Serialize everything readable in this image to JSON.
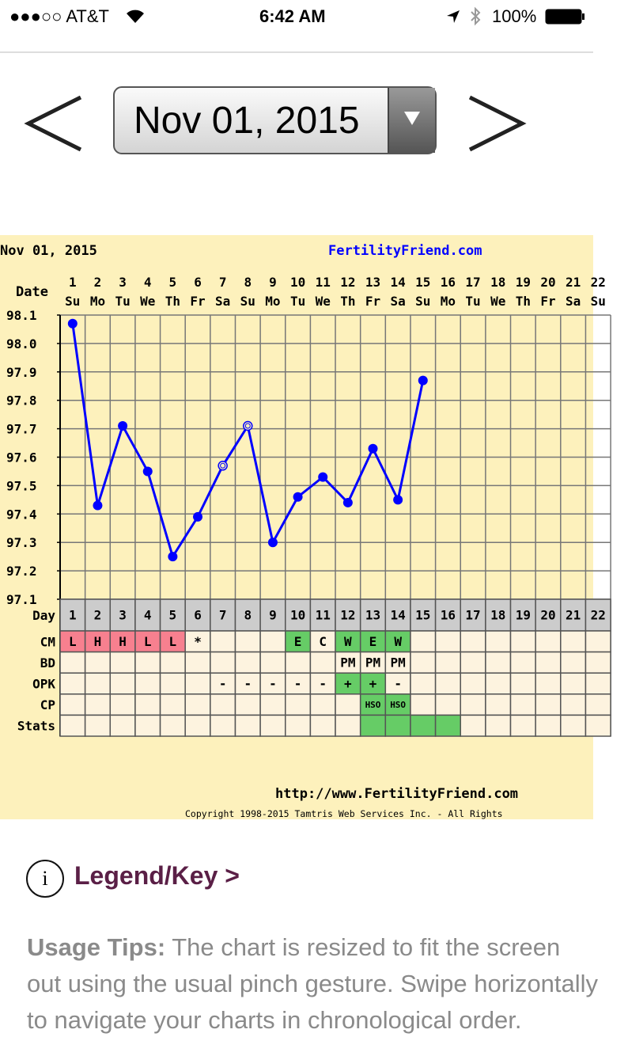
{
  "status_bar": {
    "carrier": "●●●○○ AT&T",
    "time": "6:42 AM",
    "battery": "100%"
  },
  "nav": {
    "date": "Nov 01, 2015",
    "prev_icon": "chevron-left-icon",
    "next_icon": "chevron-right-icon",
    "dropdown_icon": "triangle-down-icon"
  },
  "chart_data": {
    "type": "line",
    "title": "Nov 01, 2015",
    "site": "FertilityFriend.com",
    "url": "http://www.FertilityFriend.com",
    "copyright": "Copyright 1998-2015 Tamtris Web Services Inc. - All Rights",
    "date_label": "Date",
    "days": [
      1,
      2,
      3,
      4,
      5,
      6,
      7,
      8,
      9,
      10,
      11,
      12,
      13,
      14,
      15,
      16,
      17,
      18,
      19,
      20,
      21,
      22
    ],
    "weekdays": [
      "Su",
      "Mo",
      "Tu",
      "We",
      "Th",
      "Fr",
      "Sa",
      "Su",
      "Mo",
      "Tu",
      "We",
      "Th",
      "Fr",
      "Sa",
      "Su",
      "Mo",
      "Tu",
      "We",
      "Th",
      "Fr",
      "Sa",
      "Su"
    ],
    "ylim": [
      97.1,
      98.1
    ],
    "yticks": [
      "98.1",
      "98.0",
      "97.9",
      "97.8",
      "97.7",
      "97.6",
      "97.5",
      "97.4",
      "97.3",
      "97.2",
      "97.1"
    ],
    "grid": true,
    "series": [
      {
        "x": [
          1,
          2,
          3,
          4,
          5,
          6,
          7,
          8,
          9,
          10,
          11,
          12,
          13,
          14,
          15
        ],
        "values": [
          98.07,
          97.43,
          97.71,
          97.55,
          97.25,
          97.39,
          97.57,
          97.71,
          97.3,
          97.46,
          97.53,
          97.44,
          97.63,
          97.45,
          97.87
        ],
        "open_markers": [
          7,
          8
        ],
        "color": "#0000ff"
      }
    ],
    "rows": [
      {
        "label": "Day"
      },
      {
        "label": "CM",
        "values": {
          "1": "L",
          "2": "H",
          "3": "H",
          "4": "L",
          "5": "L",
          "6": "*",
          "10": "E",
          "11": "C",
          "12": "W",
          "13": "E",
          "14": "W"
        },
        "colors": {
          "1": "pink",
          "2": "pink",
          "3": "pink",
          "4": "pink",
          "5": "pink",
          "10": "green",
          "12": "green",
          "13": "green",
          "14": "green"
        }
      },
      {
        "label": "BD",
        "values": {
          "12": "PM",
          "13": "PM",
          "14": "PM"
        },
        "colors": {}
      },
      {
        "label": "OPK",
        "values": {
          "7": "-",
          "8": "-",
          "9": "-",
          "10": "-",
          "11": "-",
          "12": "+",
          "13": "+",
          "14": "-"
        },
        "colors": {
          "12": "green",
          "13": "green"
        }
      },
      {
        "label": "CP",
        "values": {
          "13": "HSO",
          "14": "HSO"
        },
        "colors": {
          "13": "green",
          "14": "green"
        }
      },
      {
        "label": "Stats",
        "values": {},
        "colors": {
          "13": "green",
          "14": "green",
          "15": "green",
          "16": "green"
        }
      }
    ],
    "palette": {
      "background": "#fdf1bc",
      "grid": "#777777",
      "cell": "#fdf3df",
      "header": "#cccccc",
      "pink": "#f7808f",
      "green": "#66cc66",
      "site": "#0000ff"
    }
  },
  "legend": {
    "label": "Legend/Key >",
    "icon": "info-icon",
    "icon_text": "i"
  },
  "tips": {
    "bold": "Usage Tips:",
    "line1": " The chart is resized to fit the screen",
    "line2": "out using the usual pinch gesture. Swipe horizontally",
    "line3": "to navigate your charts in chronological order."
  }
}
